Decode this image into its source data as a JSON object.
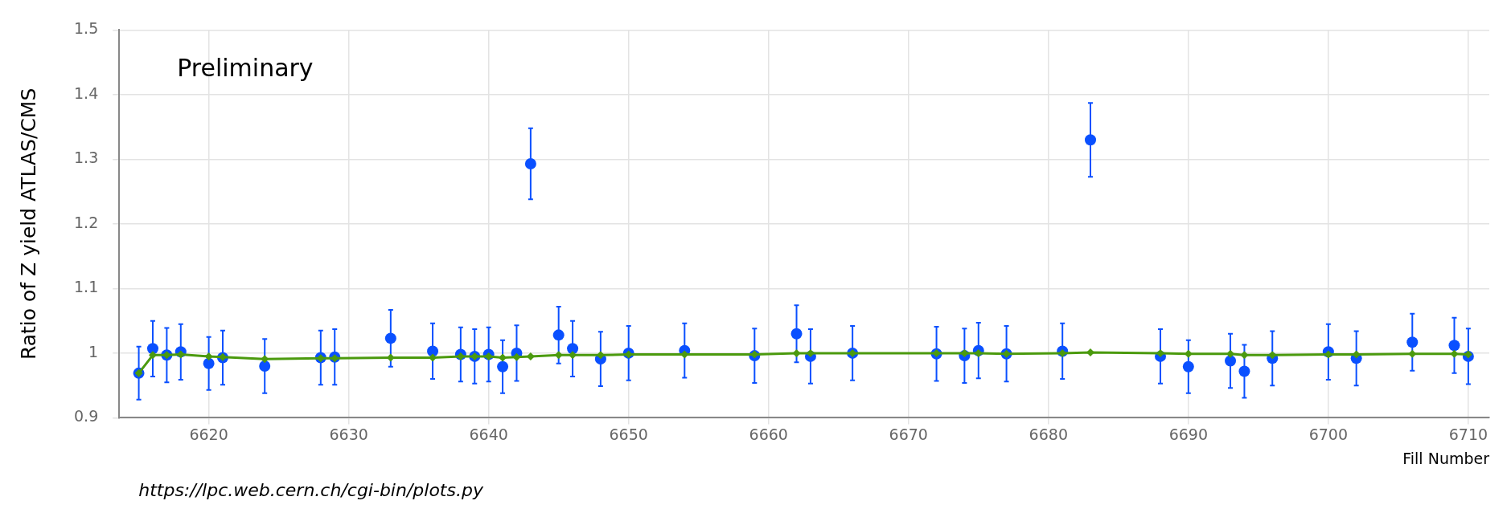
{
  "chart_data": {
    "type": "scatter",
    "xlabel": "Fill Number",
    "ylabel": "Ratio of Z yield ATLAS/CMS",
    "annotations": [
      "Preliminary",
      "https://lpc.web.cern.ch/cgi-bin/plots.py"
    ],
    "xlim": [
      6613.6,
      6711.5
    ],
    "xticks": [
      6620,
      6630,
      6640,
      6650,
      6660,
      6670,
      6680,
      6690,
      6700,
      6710
    ],
    "ylim": [
      0.9,
      1.5
    ],
    "yticks": [
      0.9,
      {
        "value": 1.0,
        "label": "1"
      },
      1.1,
      1.2,
      1.3,
      1.4,
      1.5
    ],
    "grid": true,
    "series": [
      {
        "type": "scatter",
        "marker": "circle",
        "color": "#0a50ff",
        "x": [
          6615,
          6616,
          6617,
          6618,
          6620,
          6621,
          6624,
          6628,
          6629,
          6633,
          6636,
          6638,
          6639,
          6640,
          6641,
          6642,
          6643,
          6645,
          6646,
          6648,
          6650,
          6654,
          6659,
          6662,
          6663,
          6666,
          6672,
          6674,
          6675,
          6677,
          6681,
          6683,
          6688,
          6690,
          6693,
          6694,
          6696,
          6700,
          6702,
          6706,
          6709,
          6710
        ],
        "values": [
          0.969,
          1.007,
          0.997,
          1.002,
          0.984,
          0.993,
          0.98,
          0.993,
          0.994,
          1.023,
          1.003,
          0.998,
          0.995,
          0.998,
          0.979,
          1.0,
          1.293,
          1.028,
          1.007,
          0.991,
          1.0,
          1.004,
          0.996,
          1.03,
          0.995,
          1.0,
          0.999,
          0.996,
          1.004,
          0.999,
          1.003,
          1.33,
          0.995,
          0.979,
          0.988,
          0.972,
          0.992,
          1.002,
          0.992,
          1.017,
          1.012,
          0.995
        ],
        "errors": [
          0.041,
          0.043,
          0.042,
          0.043,
          0.041,
          0.042,
          0.042,
          0.042,
          0.043,
          0.044,
          0.043,
          0.042,
          0.042,
          0.042,
          0.041,
          0.043,
          0.055,
          0.044,
          0.043,
          0.042,
          0.042,
          0.042,
          0.042,
          0.044,
          0.042,
          0.042,
          0.042,
          0.042,
          0.043,
          0.043,
          0.043,
          0.057,
          0.042,
          0.041,
          0.042,
          0.041,
          0.042,
          0.043,
          0.042,
          0.044,
          0.043,
          0.043
        ]
      },
      {
        "type": "line",
        "marker": "diamond",
        "color": "#4b9a0e",
        "x": [
          6615,
          6616,
          6617,
          6618,
          6620,
          6621,
          6624,
          6628,
          6629,
          6633,
          6636,
          6638,
          6639,
          6640,
          6641,
          6642,
          6643,
          6645,
          6646,
          6648,
          6650,
          6654,
          6659,
          6662,
          6663,
          6666,
          6672,
          6674,
          6675,
          6677,
          6681,
          6683,
          6688,
          6690,
          6693,
          6694,
          6696,
          6700,
          6702,
          6706,
          6709,
          6710
        ],
        "values": [
          0.969,
          0.997,
          0.997,
          0.998,
          0.995,
          0.994,
          0.991,
          0.992,
          0.992,
          0.993,
          0.993,
          0.995,
          0.995,
          0.995,
          0.993,
          0.994,
          0.995,
          0.997,
          0.997,
          0.997,
          0.998,
          0.998,
          0.998,
          1.0,
          1.0,
          1.0,
          1.0,
          1.0,
          1.0,
          0.999,
          1.0,
          1.001,
          1.0,
          0.999,
          0.999,
          0.997,
          0.997,
          0.998,
          0.998,
          0.999,
          0.999,
          0.998
        ]
      }
    ]
  }
}
